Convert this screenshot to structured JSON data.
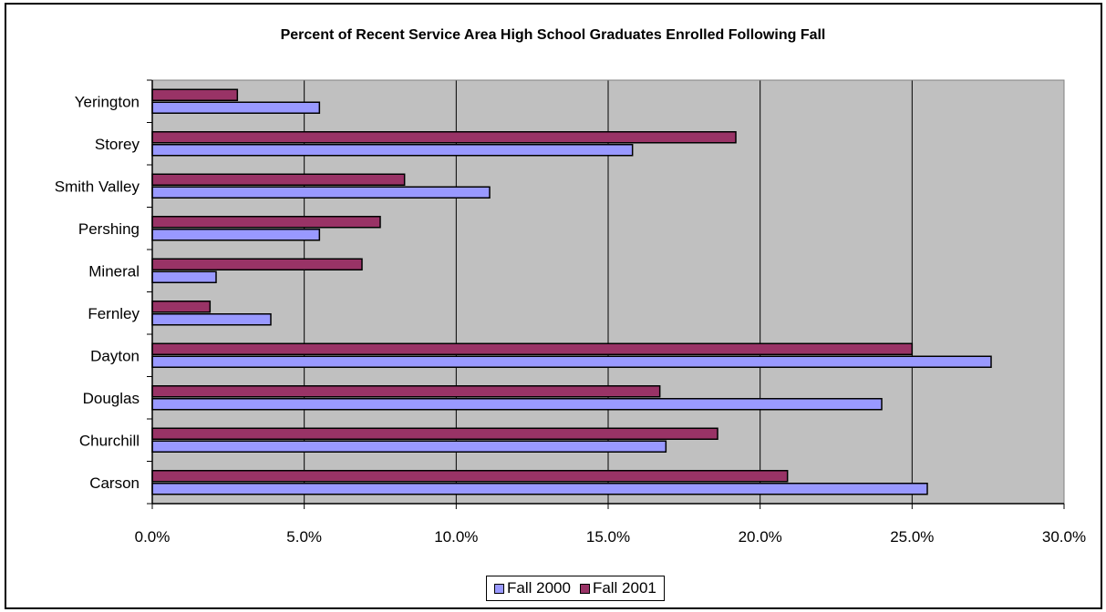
{
  "chart_data": {
    "type": "bar",
    "orientation": "horizontal",
    "title": "Percent of Recent Service Area High School Graduates Enrolled Following Fall",
    "xlabel": "",
    "ylabel": "",
    "categories": [
      "Carson",
      "Churchill",
      "Douglas",
      "Dayton",
      "Fernley",
      "Mineral",
      "Pershing",
      "Smith Valley",
      "Storey",
      "Yerington"
    ],
    "series": [
      {
        "name": "Fall 2000",
        "color": "#9999ff",
        "values": [
          25.5,
          16.9,
          24.0,
          27.6,
          3.9,
          2.1,
          5.5,
          11.1,
          15.8,
          5.5
        ]
      },
      {
        "name": "Fall 2001",
        "color": "#993366",
        "values": [
          20.9,
          18.6,
          16.7,
          25.0,
          1.9,
          6.9,
          7.5,
          8.3,
          19.2,
          2.8
        ]
      }
    ],
    "xlim": [
      0,
      30
    ],
    "x_ticks": [
      0,
      5,
      10,
      15,
      20,
      25,
      30
    ],
    "x_tick_labels": [
      "0.0%",
      "5.0%",
      "10.0%",
      "15.0%",
      "20.0%",
      "25.0%",
      "30.0%"
    ],
    "grid": true,
    "plot_background": "#c0c0c0",
    "legend_position": "bottom"
  }
}
